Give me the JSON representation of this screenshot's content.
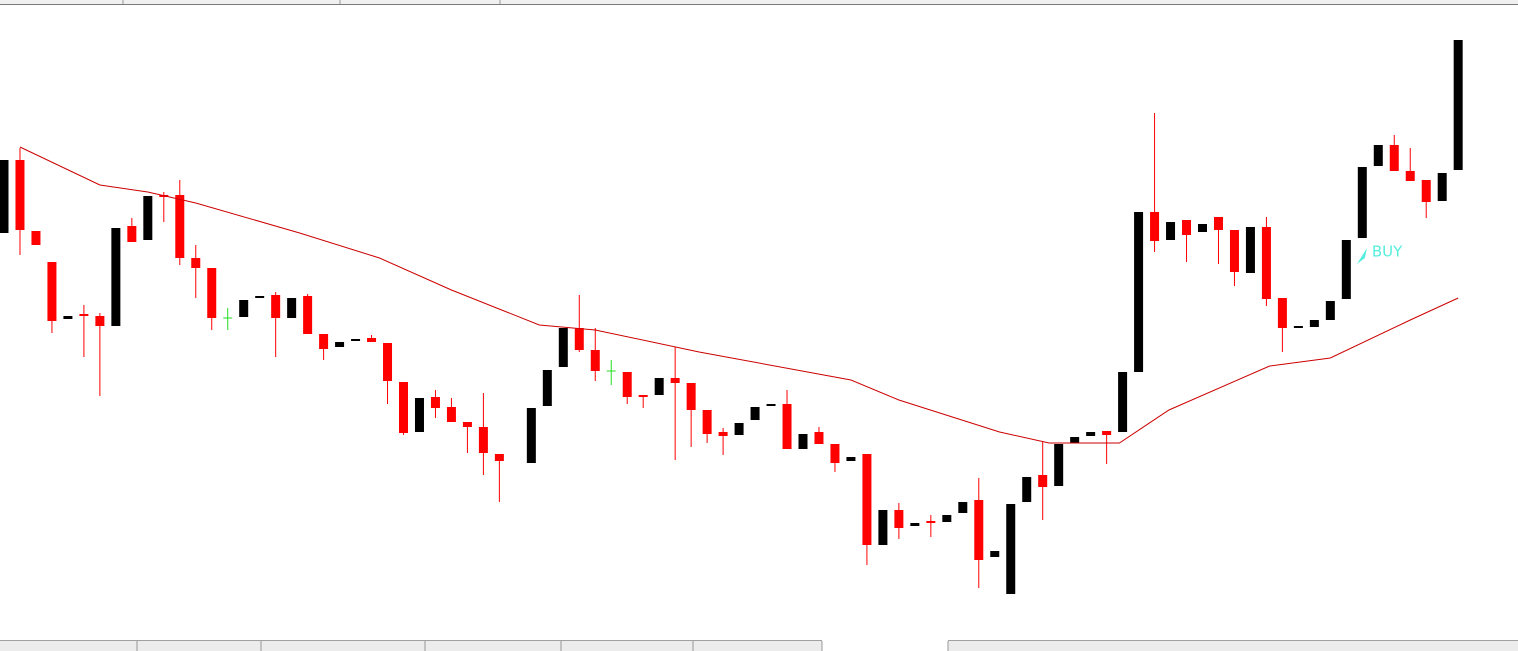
{
  "chart_data": {
    "type": "candlestick",
    "open": [
      407,
      480,
      409,
      378,
      321,
      326,
      324,
      314,
      414,
      400,
      445,
      445,
      382,
      372,
      322,
      323,
      342,
      345,
      322,
      344,
      306,
      293,
      299,
      302,
      297,
      258,
      208,
      243,
      233,
      218,
      213,
      186,
      null,
      177,
      234,
      273,
      312,
      290,
      269,
      268,
      245,
      245,
      262,
      257,
      230,
      208,
      205,
      220,
      234,
      236,
      191,
      208,
      196,
      179,
      186,
      95,
      130,
      114,
      119,
      118,
      127,
      140,
      83,
      46,
      138,
      165,
      154,
      197,
      204,
      209,
      208,
      268,
      428,
      400,
      420,
      408,
      423,
      410,
      367,
      413,
      342,
      312,
      313,
      320,
      341,
      402,
      474,
      495,
      469,
      460,
      439,
      470
    ],
    "high": [
      480,
      492,
      409,
      378,
      324,
      335,
      327,
      412,
      422,
      444,
      448,
      460,
      395,
      372,
      332,
      340,
      344,
      348,
      342,
      346,
      306,
      298,
      301,
      305,
      297,
      258,
      242,
      250,
      242,
      218,
      247,
      186,
      null,
      232,
      270,
      312,
      345,
      312,
      280,
      268,
      245,
      262,
      293,
      257,
      230,
      212,
      217,
      233,
      236,
      250,
      206,
      213,
      196,
      183,
      186,
      130,
      137,
      117,
      125,
      125,
      138,
      162,
      89,
      136,
      163,
      198,
      196,
      203,
      208,
      209,
      268,
      428,
      527,
      418,
      420,
      416,
      423,
      410,
      413,
      423,
      342,
      314,
      320,
      339,
      400,
      473,
      495,
      505,
      492,
      460,
      467,
      600
    ],
    "low": [
      407,
      385,
      395,
      307,
      321,
      283,
      244,
      314,
      398,
      400,
      418,
      375,
      342,
      310,
      310,
      323,
      342,
      283,
      322,
      306,
      280,
      293,
      299,
      298,
      236,
      205,
      208,
      222,
      218,
      187,
      165,
      138,
      null,
      177,
      234,
      273,
      288,
      259,
      255,
      236,
      232,
      245,
      180,
      193,
      197,
      185,
      205,
      220,
      234,
      191,
      191,
      196,
      168,
      179,
      75,
      95,
      101,
      114,
      103,
      118,
      127,
      52,
      83,
      46,
      138,
      120,
      154,
      197,
      204,
      176,
      208,
      268,
      388,
      400,
      378,
      408,
      376,
      354,
      367,
      334,
      288,
      312,
      313,
      320,
      341,
      402,
      474,
      469,
      459,
      422,
      439,
      470
    ],
    "close": [
      480,
      410,
      395,
      319,
      324,
      324,
      314,
      412,
      398,
      444,
      443,
      382,
      372,
      322,
      322,
      340,
      344,
      322,
      342,
      306,
      291,
      298,
      301,
      298,
      259,
      207,
      242,
      232,
      218,
      213,
      187,
      179,
      null,
      232,
      270,
      312,
      290,
      269,
      269,
      243,
      243,
      262,
      257,
      230,
      206,
      204,
      217,
      233,
      236,
      191,
      206,
      196,
      177,
      183,
      95,
      130,
      112,
      117,
      117,
      125,
      138,
      80,
      89,
      136,
      163,
      153,
      196,
      203,
      208,
      205,
      268,
      428,
      399,
      418,
      405,
      416,
      410,
      368,
      413,
      341,
      312,
      314,
      320,
      339,
      400,
      473,
      495,
      469,
      459,
      438,
      467,
      600
    ],
    "colors": {
      "up": "#000000",
      "down": "#ff0000",
      "doji": "#22dd22"
    },
    "ylim": [
      0,
      640
    ],
    "moving_average": {
      "color": "#cc0000",
      "x": [
        1,
        6,
        9,
        12,
        18.5,
        23.5,
        28,
        33.5,
        37,
        43.5,
        53,
        56,
        62.3,
        65.4,
        69.8,
        72.9,
        79.2,
        83,
        88,
        91
      ],
      "values": [
        493,
        455,
        448,
        437,
        407,
        382,
        350,
        315,
        310,
        288,
        260,
        240,
        208,
        197,
        197,
        230,
        274,
        282,
        320,
        342
      ]
    },
    "annotations": [
      {
        "text": "BUY",
        "x": 85.1,
        "y": 382,
        "color": "#55eedd"
      }
    ]
  }
}
